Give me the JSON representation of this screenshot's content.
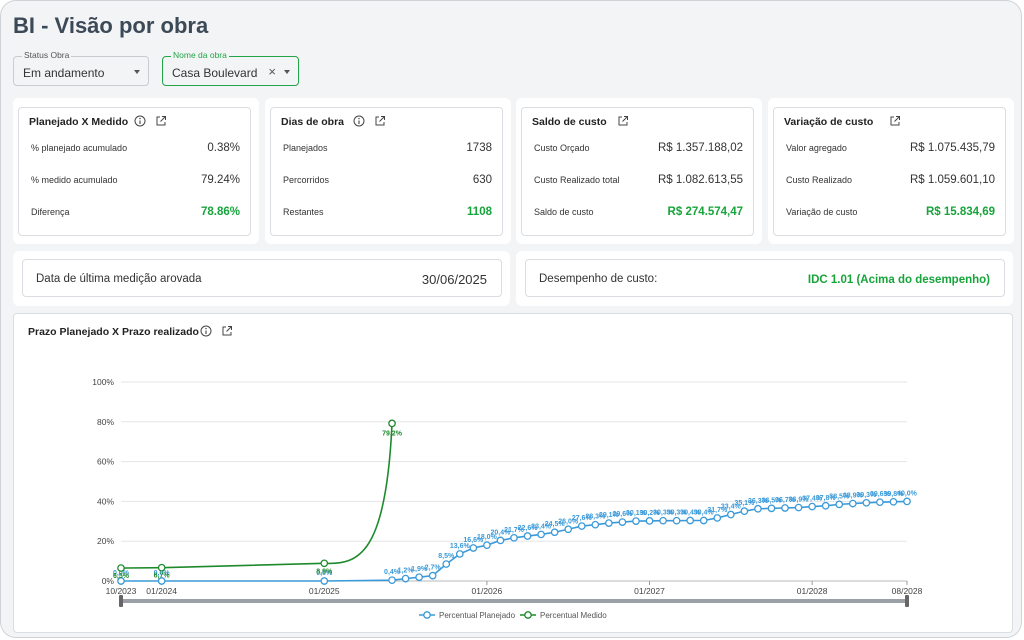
{
  "page": {
    "title": "BI - Visão por obra"
  },
  "filters": {
    "status": {
      "label": "Status Obra",
      "value": "Em andamento"
    },
    "obra": {
      "label": "Nome da obra",
      "value": "Casa Boulevard",
      "clear": "×"
    }
  },
  "cards": [
    {
      "title": "Planejado X Medido",
      "has_info": true,
      "rows": [
        {
          "label": "% planejado acumulado",
          "value": "0.38%",
          "green": false
        },
        {
          "label": "% medido acumulado",
          "value": "79.24%",
          "green": false
        },
        {
          "label": "Diferença",
          "value": "78.86%",
          "green": true
        }
      ]
    },
    {
      "title": "Dias de obra",
      "has_info": true,
      "rows": [
        {
          "label": "Planejados",
          "value": "1738",
          "green": false
        },
        {
          "label": "Percorridos",
          "value": "630",
          "green": false
        },
        {
          "label": "Restantes",
          "value": "1108",
          "green": true
        }
      ]
    },
    {
      "title": "Saldo de custo",
      "has_info": false,
      "rows": [
        {
          "label": "Custo Orçado",
          "value": "R$ 1.357.188,02",
          "green": false
        },
        {
          "label": "Custo Realizado total",
          "value": "R$ 1.082.613,55",
          "green": false
        },
        {
          "label": "Saldo de custo",
          "value": "R$ 274.574,47",
          "green": true
        }
      ]
    },
    {
      "title": "Variação de custo",
      "has_info": false,
      "rows": [
        {
          "label": "Valor agregado",
          "value": "R$ 1.075.435,79",
          "green": false
        },
        {
          "label": "Custo Realizado",
          "value": "R$ 1.059.601,10",
          "green": false
        },
        {
          "label": "Variação de custo",
          "value": "R$ 15.834,69",
          "green": true
        }
      ]
    }
  ],
  "last_measure": {
    "label": "Data de última medição arovada",
    "value": "30/06/2025"
  },
  "performance": {
    "label": "Desempenho de custo:",
    "value": "IDC 1.01 (Acima do desempenho)"
  },
  "chart_panel": {
    "title": "Prazo Planejado X Prazo realizado"
  },
  "colors": {
    "planned": "#3a9ad9",
    "measured": "#1e8a2c",
    "green_text": "#17a43b",
    "accent_border": "#22a546"
  },
  "chart_data": {
    "type": "line",
    "x_ticks": [
      "10/2023",
      "01/2024",
      "01/2025",
      "01/2026",
      "01/2027",
      "01/2028",
      "08/2028"
    ],
    "y_ticks": [
      "0%",
      "20%",
      "40%",
      "60%",
      "80%",
      "100%"
    ],
    "ylim": [
      0,
      100
    ],
    "legend_position": "bottom",
    "series": [
      {
        "name": "Percentual Planejado",
        "x": [
          "2023-10",
          "2024-01",
          "2025-01",
          "2025-06",
          "2025-07",
          "2025-08",
          "2025-09",
          "2025-10",
          "2025-11",
          "2025-12",
          "2026-01",
          "2026-02",
          "2026-03",
          "2026-04",
          "2026-05",
          "2026-06",
          "2026-07",
          "2026-08",
          "2026-09",
          "2026-10",
          "2026-11",
          "2026-12",
          "2027-01",
          "2027-02",
          "2027-03",
          "2027-04",
          "2027-05",
          "2027-06",
          "2027-07",
          "2027-08",
          "2027-09",
          "2027-10",
          "2027-11",
          "2027-12",
          "2028-01",
          "2028-02",
          "2028-03",
          "2028-04",
          "2028-05",
          "2028-06",
          "2028-07",
          "2028-08"
        ],
        "values": [
          0,
          0,
          0,
          0.4,
          1.2,
          1.9,
          2.7,
          8.5,
          13.6,
          16.6,
          18.0,
          20.4,
          21.7,
          22.6,
          23.4,
          24.5,
          26.0,
          27.6,
          28.3,
          29.1,
          29.6,
          30.1,
          30.2,
          30.3,
          30.3,
          30.4,
          30.4,
          31.7,
          33.4,
          35.1,
          36.3,
          36.5,
          36.7,
          36.9,
          37.4,
          37.8,
          38.5,
          38.9,
          39.3,
          39.6,
          39.8,
          40.0
        ],
        "labels": [
          "0,0%",
          "0,0%",
          "0,0%",
          "0,4%",
          "1,2%",
          "1,9%",
          "2,7%",
          "8,5%",
          "13,6%",
          "16,6%",
          "18,0%",
          "20,4%",
          "21,7%",
          "22,6%",
          "23,4%",
          "24,5%",
          "26,0%",
          "27,6%",
          "28,3%",
          "29,1%",
          "29,6%",
          "30,1%",
          "30,2%",
          "30,3%",
          "30,3%",
          "30,4%",
          "30,4%",
          "31,7%",
          "33,4%",
          "35,1%",
          "36,3%",
          "36,5%",
          "36,7%",
          "36,9%",
          "37,4%",
          "37,8%",
          "38,5%",
          "38,9%",
          "39,3%",
          "39,6%",
          "39,8%",
          "40,0%"
        ]
      },
      {
        "name": "Percentual Medido",
        "x": [
          "2023-10",
          "2024-01",
          "2025-01",
          "2025-06"
        ],
        "values": [
          6.5,
          6.7,
          8.9,
          79.2
        ],
        "labels": [
          "6,5%",
          "6,7%",
          "8,9%",
          "79,2%"
        ]
      }
    ]
  }
}
